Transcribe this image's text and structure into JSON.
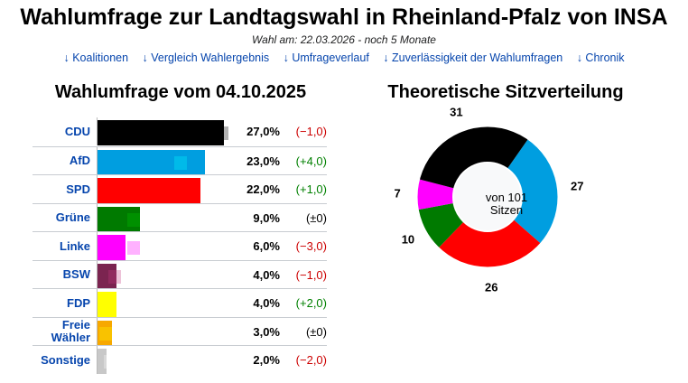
{
  "page": {
    "title": "Wahlumfrage zur Landtagswahl in Rheinland-Pfalz von INSA",
    "subtitle": "Wahl am: 22.03.2026 - noch 5 Monate"
  },
  "nav": {
    "links": [
      "↓ Koalitionen",
      "↓ Vergleich Wahlergebnis",
      "↓ Umfrageverlauf",
      "↓ Zuverlässigkeit der Wahlumfragen",
      "↓ Chronik"
    ]
  },
  "poll": {
    "title": "Wahlumfrage vom 04.10.2025",
    "parties": [
      {
        "name": "CDU",
        "percent": "27,0%",
        "change": "(−1,0)",
        "value": 27.0,
        "previous": 28.0,
        "color": "#000000",
        "change_color": "#cc0000"
      },
      {
        "name": "AfD",
        "percent": "23,0%",
        "change": "(+4,0)",
        "value": 23.0,
        "previous": 19.0,
        "color": "#009ee0",
        "change_color": "#008000"
      },
      {
        "name": "SPD",
        "percent": "22,0%",
        "change": "(+1,0)",
        "value": 22.0,
        "previous": 21.0,
        "color": "#ff0000",
        "change_color": "#008000"
      },
      {
        "name": "Grüne",
        "percent": "9,0%",
        "change": "(±0)",
        "value": 9.0,
        "previous": 9.0,
        "color": "#007a00",
        "change_color": "#000000"
      },
      {
        "name": "Linke",
        "percent": "6,0%",
        "change": "(−3,0)",
        "value": 6.0,
        "previous": 9.0,
        "color": "#ff00ff",
        "change_color": "#cc0000"
      },
      {
        "name": "BSW",
        "percent": "4,0%",
        "change": "(−1,0)",
        "value": 4.0,
        "previous": 5.0,
        "color": "#7b2450",
        "change_color": "#cc0000"
      },
      {
        "name": "FDP",
        "percent": "4,0%",
        "change": "(+2,0)",
        "value": 4.0,
        "previous": 2.0,
        "color": "#ffff00",
        "change_color": "#008000"
      },
      {
        "name": "Freie Wähler",
        "percent": "3,0%",
        "change": "(±0)",
        "value": 3.0,
        "previous": 3.0,
        "color": "#f7a800",
        "change_color": "#000000"
      },
      {
        "name": "Sonstige",
        "percent": "2,0%",
        "change": "(−2,0)",
        "value": 2.0,
        "previous": 4.0,
        "color": "#c8c8c8",
        "change_color": "#cc0000"
      }
    ]
  },
  "seats": {
    "title": "Theoretische Sitzverteilung",
    "center_label": "von 101 Sitzen",
    "total": 101,
    "distribution": [
      {
        "party": "AfD",
        "seats": 27,
        "color": "#009ee0"
      },
      {
        "party": "SPD",
        "seats": 26,
        "color": "#ff0000"
      },
      {
        "party": "Grüne",
        "seats": 10,
        "color": "#007a00"
      },
      {
        "party": "Linke",
        "seats": 7,
        "color": "#ff00ff"
      },
      {
        "party": "CDU",
        "seats": 31,
        "color": "#000000"
      }
    ]
  }
}
